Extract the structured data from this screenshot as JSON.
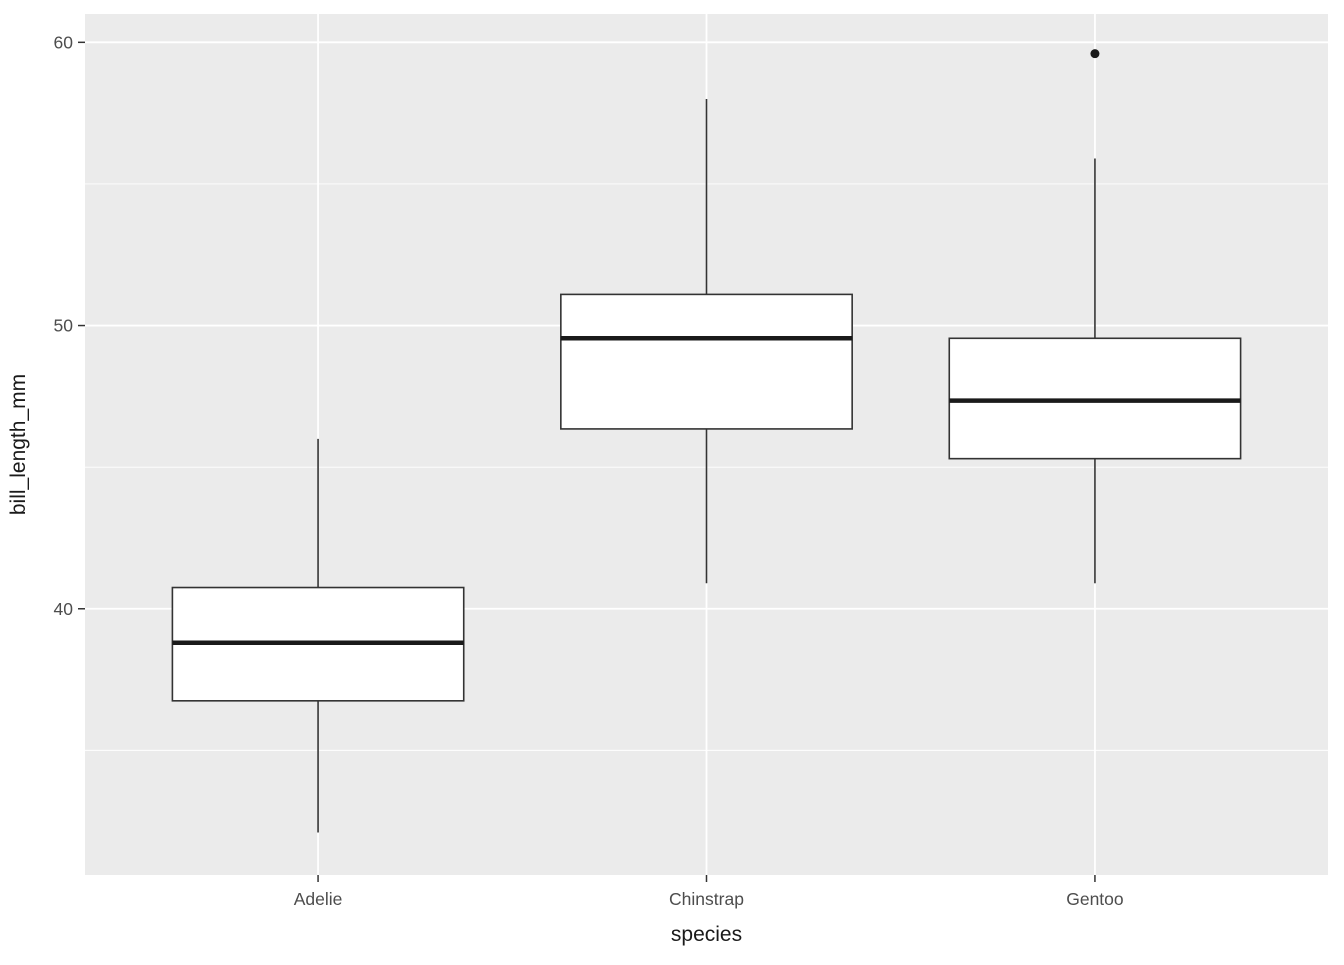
{
  "chart_data": {
    "type": "boxplot",
    "title": "",
    "xlabel": "species",
    "ylabel": "bill_length_mm",
    "categories": [
      "Adelie",
      "Chinstrap",
      "Gentoo"
    ],
    "series": [
      {
        "name": "Adelie",
        "min": 32.1,
        "q1": 36.75,
        "median": 38.8,
        "q3": 40.75,
        "max": 46.0,
        "outliers": []
      },
      {
        "name": "Chinstrap",
        "min": 40.9,
        "q1": 46.35,
        "median": 49.55,
        "q3": 51.1,
        "max": 58.0,
        "outliers": []
      },
      {
        "name": "Gentoo",
        "min": 40.9,
        "q1": 45.3,
        "median": 47.35,
        "q3": 49.55,
        "max": 55.9,
        "outliers": [
          59.6
        ]
      }
    ],
    "ylim": [
      30.6,
      61.0
    ],
    "y_major_ticks": [
      40,
      50,
      60
    ],
    "y_minor_ticks": [
      35,
      45,
      55
    ],
    "grid": true,
    "legend_position": "none",
    "theme": {
      "page_bg": "#FFFFFF",
      "panel_bg": "#EBEBEB",
      "grid_color": "#FFFFFF",
      "box_fill": "#FFFFFF",
      "box_stroke": "#333333",
      "median_stroke": "#1A1A1A",
      "outlier_fill": "#1A1A1A",
      "tick_color": "#333333",
      "tick_label_color": "#4D4D4D",
      "axis_title_color": "#1A1A1A"
    }
  }
}
